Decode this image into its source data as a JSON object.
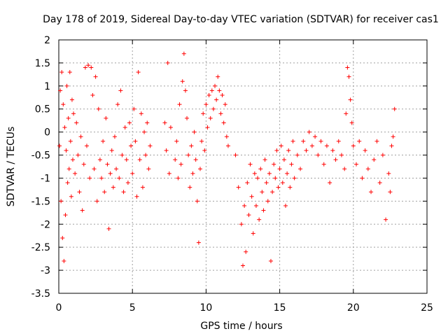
{
  "chart_data": {
    "type": "scatter",
    "title": "Day 178 of 2019, Sidereal Day-to-day VTEC variation (SDTVAR) for receiver cas1",
    "xlabel": "GPS time / hours",
    "ylabel": "SDTVAR / TECUs",
    "xlim": [
      0,
      25
    ],
    "ylim": [
      -3.5,
      2
    ],
    "x_ticks": [
      "0",
      "5",
      "10",
      "15",
      "20",
      "25"
    ],
    "y_ticks": [
      "2",
      "1.5",
      "1",
      "0.5",
      "0",
      "-0.5",
      "-1",
      "-1.5",
      "-2",
      "-2.5",
      "-3",
      "-3.5"
    ],
    "grid": true,
    "marker": "+",
    "color": "#ff0000",
    "series": [
      {
        "name": "SDTVAR",
        "points": [
          [
            0.05,
            -0.3
          ],
          [
            0.1,
            0.9
          ],
          [
            0.15,
            -1.5
          ],
          [
            0.2,
            1.3
          ],
          [
            0.25,
            -2.3
          ],
          [
            0.3,
            0.6
          ],
          [
            0.35,
            -2.8
          ],
          [
            0.4,
            0.1
          ],
          [
            0.45,
            -1.8
          ],
          [
            0.5,
            -0.4
          ],
          [
            0.55,
            1.0
          ],
          [
            0.6,
            -1.1
          ],
          [
            0.65,
            0.3
          ],
          [
            0.7,
            -0.8
          ],
          [
            0.75,
            1.3
          ],
          [
            0.8,
            -0.2
          ],
          [
            0.85,
            -1.4
          ],
          [
            0.9,
            0.7
          ],
          [
            0.95,
            -0.6
          ],
          [
            1.0,
            0.4
          ],
          [
            1.1,
            -0.9
          ],
          [
            1.2,
            0.2
          ],
          [
            1.3,
            -0.5
          ],
          [
            1.4,
            -1.3
          ],
          [
            1.5,
            -0.1
          ],
          [
            1.6,
            -1.7
          ],
          [
            1.7,
            -0.7
          ],
          [
            1.8,
            1.4
          ],
          [
            1.9,
            -0.3
          ],
          [
            2.0,
            1.45
          ],
          [
            2.1,
            -1.0
          ],
          [
            2.2,
            1.4
          ],
          [
            2.3,
            0.8
          ],
          [
            2.4,
            -0.8
          ],
          [
            2.5,
            1.2
          ],
          [
            2.6,
            -1.5
          ],
          [
            2.7,
            0.5
          ],
          [
            2.8,
            -0.6
          ],
          [
            2.9,
            -1.0
          ],
          [
            3.0,
            -0.2
          ],
          [
            3.1,
            -1.3
          ],
          [
            3.2,
            0.3
          ],
          [
            3.3,
            -0.7
          ],
          [
            3.4,
            -2.1
          ],
          [
            3.5,
            -0.9
          ],
          [
            3.6,
            -0.4
          ],
          [
            3.7,
            -1.2
          ],
          [
            3.8,
            -0.1
          ],
          [
            3.9,
            -0.8
          ],
          [
            4.0,
            0.6
          ],
          [
            4.1,
            -1.0
          ],
          [
            4.2,
            0.9
          ],
          [
            4.3,
            -0.5
          ],
          [
            4.4,
            -1.3
          ],
          [
            4.5,
            0.1
          ],
          [
            4.6,
            -0.6
          ],
          [
            4.7,
            -1.1
          ],
          [
            4.8,
            0.2
          ],
          [
            4.9,
            -0.3
          ],
          [
            5.0,
            -0.9
          ],
          [
            5.1,
            0.5
          ],
          [
            5.2,
            -0.2
          ],
          [
            5.3,
            -1.4
          ],
          [
            5.4,
            1.3
          ],
          [
            5.5,
            -0.6
          ],
          [
            5.6,
            0.4
          ],
          [
            5.7,
            -1.2
          ],
          [
            5.8,
            0.0
          ],
          [
            5.9,
            -0.5
          ],
          [
            6.0,
            0.2
          ],
          [
            6.1,
            -0.8
          ],
          [
            6.2,
            -0.3
          ],
          [
            7.2,
            0.2
          ],
          [
            7.3,
            -0.4
          ],
          [
            7.4,
            1.5
          ],
          [
            7.5,
            -0.9
          ],
          [
            7.6,
            0.1
          ],
          [
            7.9,
            -0.6
          ],
          [
            8.0,
            -0.2
          ],
          [
            8.1,
            -1.0
          ],
          [
            8.2,
            0.6
          ],
          [
            8.3,
            -0.7
          ],
          [
            8.4,
            1.1
          ],
          [
            8.5,
            1.7
          ],
          [
            8.6,
            0.9
          ],
          [
            8.7,
            0.3
          ],
          [
            8.8,
            -0.5
          ],
          [
            8.9,
            -1.2
          ],
          [
            9.0,
            -0.3
          ],
          [
            9.1,
            -0.9
          ],
          [
            9.2,
            0.0
          ],
          [
            9.3,
            -0.6
          ],
          [
            9.4,
            -1.5
          ],
          [
            9.5,
            -2.4
          ],
          [
            9.6,
            -0.8
          ],
          [
            9.7,
            -0.2
          ],
          [
            9.8,
            0.4
          ],
          [
            9.9,
            -0.4
          ],
          [
            10.0,
            0.6
          ],
          [
            10.1,
            0.1
          ],
          [
            10.2,
            0.8
          ],
          [
            10.3,
            0.3
          ],
          [
            10.4,
            0.9
          ],
          [
            10.5,
            0.5
          ],
          [
            10.6,
            1.0
          ],
          [
            10.7,
            0.7
          ],
          [
            10.8,
            1.2
          ],
          [
            10.9,
            0.9
          ],
          [
            11.0,
            0.4
          ],
          [
            11.1,
            0.8
          ],
          [
            11.2,
            0.2
          ],
          [
            11.3,
            0.6
          ],
          [
            11.4,
            -0.1
          ],
          [
            11.5,
            -0.3
          ],
          [
            12.0,
            -0.5
          ],
          [
            12.2,
            -1.2
          ],
          [
            12.4,
            -2.0
          ],
          [
            12.5,
            -2.9
          ],
          [
            12.6,
            -1.6
          ],
          [
            12.7,
            -2.6
          ],
          [
            12.8,
            -1.1
          ],
          [
            12.9,
            -1.8
          ],
          [
            13.0,
            -0.7
          ],
          [
            13.1,
            -1.4
          ],
          [
            13.2,
            -2.2
          ],
          [
            13.3,
            -0.9
          ],
          [
            13.4,
            -1.6
          ],
          [
            13.5,
            -1.0
          ],
          [
            13.6,
            -1.9
          ],
          [
            13.7,
            -0.8
          ],
          [
            13.8,
            -1.3
          ],
          [
            13.9,
            -1.7
          ],
          [
            14.0,
            -0.6
          ],
          [
            14.1,
            -1.1
          ],
          [
            14.2,
            -1.5
          ],
          [
            14.3,
            -0.9
          ],
          [
            14.4,
            -2.8
          ],
          [
            14.5,
            -1.3
          ],
          [
            14.6,
            -0.7
          ],
          [
            14.7,
            -1.0
          ],
          [
            14.8,
            -0.4
          ],
          [
            14.9,
            -1.2
          ],
          [
            15.0,
            -0.8
          ],
          [
            15.1,
            -0.3
          ],
          [
            15.2,
            -1.1
          ],
          [
            15.3,
            -0.6
          ],
          [
            15.4,
            -1.6
          ],
          [
            15.5,
            -0.9
          ],
          [
            15.6,
            -0.4
          ],
          [
            15.7,
            -1.2
          ],
          [
            15.8,
            -0.7
          ],
          [
            15.9,
            -0.2
          ],
          [
            16.0,
            -1.0
          ],
          [
            16.2,
            -0.5
          ],
          [
            16.4,
            -0.8
          ],
          [
            16.6,
            -0.2
          ],
          [
            16.8,
            -0.4
          ],
          [
            17.0,
            0.0
          ],
          [
            17.2,
            -0.3
          ],
          [
            17.4,
            -0.1
          ],
          [
            17.6,
            -0.5
          ],
          [
            17.8,
            -0.2
          ],
          [
            18.0,
            -0.7
          ],
          [
            18.2,
            -0.3
          ],
          [
            18.4,
            -1.1
          ],
          [
            18.6,
            -0.4
          ],
          [
            18.8,
            -0.6
          ],
          [
            19.0,
            -0.2
          ],
          [
            19.2,
            -0.5
          ],
          [
            19.4,
            -0.8
          ],
          [
            19.5,
            0.4
          ],
          [
            19.6,
            1.4
          ],
          [
            19.7,
            1.2
          ],
          [
            19.8,
            0.7
          ],
          [
            19.9,
            0.2
          ],
          [
            20.0,
            -0.3
          ],
          [
            20.2,
            -0.7
          ],
          [
            20.4,
            -0.2
          ],
          [
            20.6,
            -1.0
          ],
          [
            20.8,
            -0.4
          ],
          [
            21.0,
            -0.8
          ],
          [
            21.2,
            -1.3
          ],
          [
            21.4,
            -0.6
          ],
          [
            21.6,
            -0.2
          ],
          [
            21.8,
            -1.1
          ],
          [
            22.0,
            -0.5
          ],
          [
            22.2,
            -1.9
          ],
          [
            22.4,
            -0.9
          ],
          [
            22.5,
            -1.3
          ],
          [
            22.6,
            -0.3
          ],
          [
            22.7,
            -0.1
          ],
          [
            22.8,
            0.5
          ]
        ]
      }
    ]
  }
}
